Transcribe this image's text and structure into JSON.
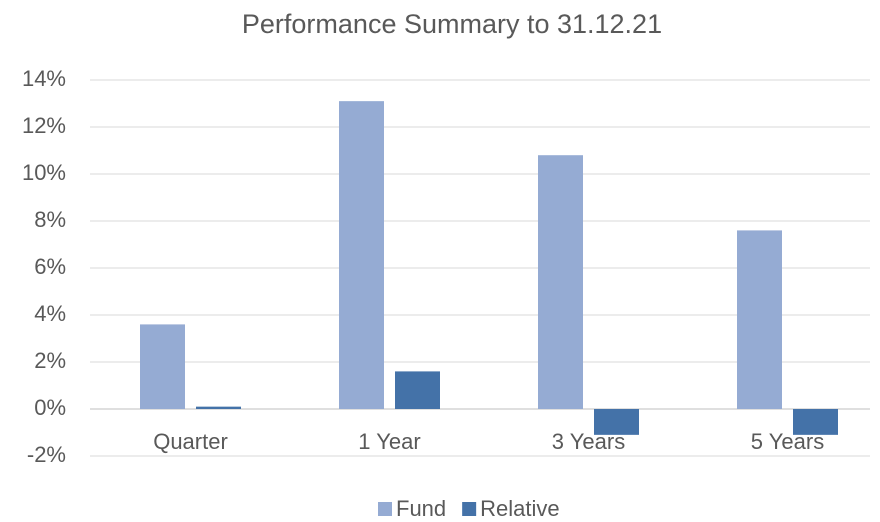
{
  "chart_data": {
    "type": "bar",
    "title": "Performance Summary to 31.12.21",
    "categories": [
      "Quarter",
      "1 Year",
      "3 Years",
      "5 Years"
    ],
    "series": [
      {
        "name": "Fund",
        "color": "#95abd3",
        "values": [
          3.6,
          13.1,
          10.8,
          7.6
        ]
      },
      {
        "name": "Relative",
        "color": "#4472a8",
        "values": [
          0.1,
          1.6,
          -1.1,
          -1.1
        ]
      }
    ],
    "ylim": [
      -2,
      14
    ],
    "yticks": [
      {
        "value": -2,
        "label": "-2%"
      },
      {
        "value": 0,
        "label": "0%"
      },
      {
        "value": 2,
        "label": "2%"
      },
      {
        "value": 4,
        "label": "4%"
      },
      {
        "value": 6,
        "label": "6%"
      },
      {
        "value": 8,
        "label": "8%"
      },
      {
        "value": 10,
        "label": "10%"
      },
      {
        "value": 12,
        "label": "12%"
      },
      {
        "value": 14,
        "label": "14%"
      }
    ],
    "grid": true,
    "legend": "bottom"
  }
}
